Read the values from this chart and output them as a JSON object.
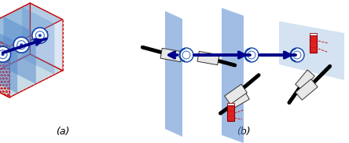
{
  "bg_color": "#ffffff",
  "border_color": "#1155cc",
  "title_a": "(a)",
  "title_b": "(b)",
  "fig_width": 4.44,
  "fig_height": 1.82,
  "red_edge": "#cc0000",
  "plane_dark": "#5588cc",
  "plane_mid": "#7aaad4",
  "plane_light": "#b8d0e8",
  "floor_color": "#d0e4f0",
  "arrow_color": "#00008b",
  "hatched_face": "#dd4444",
  "box_top": "#8ab4d8",
  "box_floor": "#c8dce8"
}
